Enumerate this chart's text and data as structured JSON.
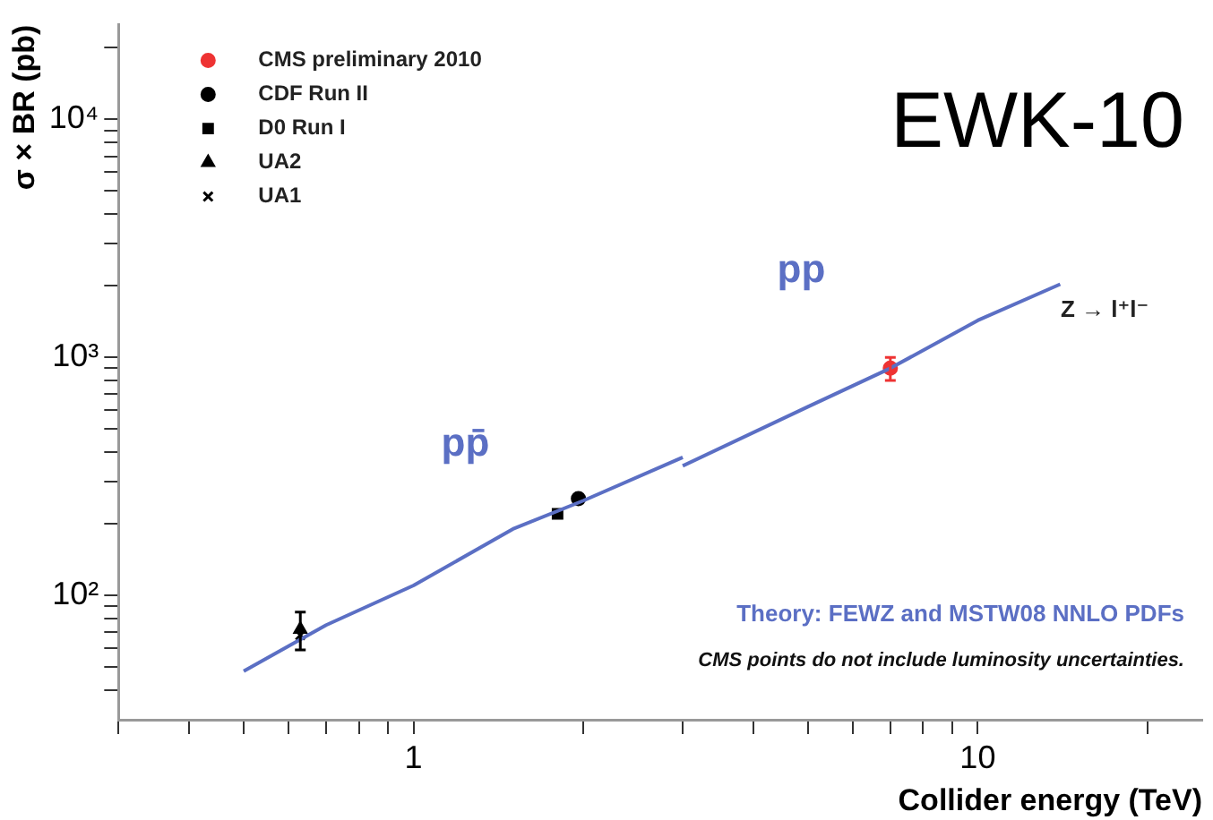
{
  "chart_data": {
    "type": "scatter",
    "xlabel": "Collider energy (TeV)",
    "ylabel": "σ × BR (pb)",
    "log": "xy",
    "grid": false,
    "legend": "top left",
    "xlim": [
      0.3,
      25
    ],
    "ylim": [
      30,
      25000
    ],
    "xticks": [
      {
        "value": 0.3,
        "label": null
      },
      {
        "value": 0.4,
        "label": null
      },
      {
        "value": 0.5,
        "label": null
      },
      {
        "value": 0.6,
        "label": null
      },
      {
        "value": 0.7,
        "label": null
      },
      {
        "value": 0.8,
        "label": null
      },
      {
        "value": 0.9,
        "label": null
      },
      1,
      {
        "value": 2,
        "label": null
      },
      {
        "value": 3,
        "label": null
      },
      {
        "value": 4,
        "label": null
      },
      {
        "value": 5,
        "label": null
      },
      {
        "value": 6,
        "label": null
      },
      {
        "value": 7,
        "label": null
      },
      {
        "value": 8,
        "label": null
      },
      {
        "value": 9,
        "label": null
      },
      10,
      {
        "value": 20,
        "label": null
      }
    ],
    "yticks": [
      {
        "value": 40,
        "label": null
      },
      {
        "value": 50,
        "label": null
      },
      {
        "value": 60,
        "label": null
      },
      {
        "value": 70,
        "label": null
      },
      {
        "value": 80,
        "label": null
      },
      {
        "value": 90,
        "label": null
      },
      {
        "value": 100,
        "label": "10²"
      },
      {
        "value": 200,
        "label": null
      },
      {
        "value": 300,
        "label": null
      },
      {
        "value": 400,
        "label": null
      },
      {
        "value": 500,
        "label": null
      },
      {
        "value": 600,
        "label": null
      },
      {
        "value": 700,
        "label": null
      },
      {
        "value": 800,
        "label": null
      },
      {
        "value": 900,
        "label": null
      },
      {
        "value": 1000,
        "label": "10³"
      },
      {
        "value": 2000,
        "label": null
      },
      {
        "value": 3000,
        "label": null
      },
      {
        "value": 4000,
        "label": null
      },
      {
        "value": 5000,
        "label": null
      },
      {
        "value": 6000,
        "label": null
      },
      {
        "value": 7000,
        "label": null
      },
      {
        "value": 8000,
        "label": null
      },
      {
        "value": 9000,
        "label": null
      },
      {
        "value": 10000,
        "label": "10⁴"
      },
      {
        "value": 20000,
        "label": null
      }
    ],
    "series": [
      {
        "type": "line",
        "color": "#5b6fc4",
        "x": [
          0.5,
          0.7,
          1,
          1.5,
          2,
          3
        ],
        "values": [
          48,
          75,
          110,
          190,
          250,
          380
        ]
      },
      {
        "type": "line",
        "color": "#5b6fc4",
        "x": [
          3,
          5,
          7,
          10,
          14
        ],
        "values": [
          350,
          620,
          900,
          1430,
          2030
        ]
      },
      {
        "name": "CMS preliminary 2010",
        "color": "#ee3333",
        "marker": "circle",
        "x": [
          7
        ],
        "values": [
          900
        ],
        "errors": [
          100
        ]
      },
      {
        "name": "CDF Run II",
        "color": "#000000",
        "marker": "circle",
        "x": [
          1.96
        ],
        "values": [
          255
        ]
      },
      {
        "name": "D0 Run I",
        "color": "#000000",
        "marker": "square",
        "x": [
          1.8
        ],
        "values": [
          220
        ]
      },
      {
        "name": "UA2",
        "color": "#000000",
        "marker": "triangle",
        "x": [
          0.63
        ],
        "values": [
          72
        ],
        "errors": [
          [
            59,
            85
          ]
        ]
      },
      {
        "name": "UA1",
        "color": "#000000",
        "marker": "cross",
        "x": [
          0.63
        ],
        "values": [
          68
        ]
      }
    ],
    "annotations": [
      "pp̄",
      "pp",
      "Z → l⁺l⁻",
      "Theory: FEWZ and MSTW08 NNLO PDFs",
      "CMS points do not include luminosity uncertainties.",
      "EWK-10"
    ]
  }
}
